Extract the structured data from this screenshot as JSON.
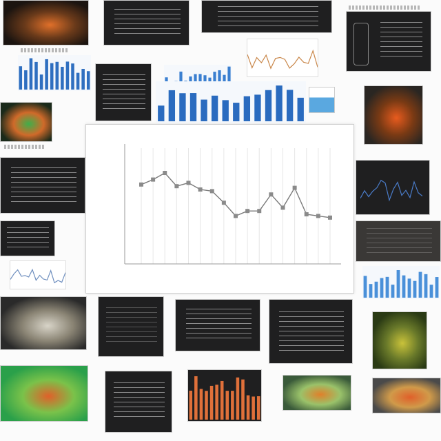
{
  "collage": {
    "tiles": [
      {
        "kind": "photo",
        "name": "photo-tile-orange-specimen",
        "colors": [
          "#1b1410",
          "#e0702a",
          "#6a3a1a"
        ]
      },
      {
        "kind": "dark",
        "name": "dark-text-slide-top"
      },
      {
        "kind": "dark",
        "name": "dark-text-slide-top-wide"
      },
      {
        "kind": "dark",
        "name": "dark-device-slide"
      },
      {
        "kind": "bars",
        "name": "blue-bar-chart-tile-left",
        "color": "#2f6fc0"
      },
      {
        "kind": "dark",
        "name": "dark-text-slide-mid"
      },
      {
        "kind": "bars",
        "name": "blue-bar-chart-tile-center",
        "color": "#3a7fd0"
      },
      {
        "kind": "bars",
        "name": "blue-bar-chart-tile-wide",
        "color": "#2a6bbf"
      },
      {
        "kind": "line",
        "name": "mini-line-chart-tile-top",
        "color": "#c9874a"
      },
      {
        "kind": "photo",
        "name": "photo-tile-orange-sphere",
        "colors": [
          "#2a2622",
          "#e85b1e",
          "#7a3a14"
        ]
      },
      {
        "kind": "photo",
        "name": "photo-tile-green-specimen",
        "colors": [
          "#1a2a1a",
          "#3fae4a",
          "#d06a2a"
        ]
      },
      {
        "kind": "dark",
        "name": "dark-text-slide-left-1"
      },
      {
        "kind": "dark",
        "name": "dark-waveform-slide-right",
        "color": "#4a7cc9"
      },
      {
        "kind": "dark",
        "name": "dark-text-slide-left-2"
      },
      {
        "kind": "line",
        "name": "mini-line-chart-tile-left",
        "color": "#6f8fbf"
      },
      {
        "kind": "dark",
        "name": "dark-texture-slide-right"
      },
      {
        "kind": "bars",
        "name": "blue-bar-chart-tile-right",
        "color": "#4a90d9"
      },
      {
        "kind": "photo",
        "name": "photo-tile-white-specimen",
        "colors": [
          "#2a2a2a",
          "#d8d4c8",
          "#8a8474"
        ]
      },
      {
        "kind": "dark",
        "name": "dark-slide-bottom-1"
      },
      {
        "kind": "dark",
        "name": "dark-text-slide-bottom-2"
      },
      {
        "kind": "dark",
        "name": "dark-text-slide-bottom-3"
      },
      {
        "kind": "photo",
        "name": "photo-tile-green-fibers",
        "colors": [
          "#2a3a14",
          "#c9c23a",
          "#6a7a2a"
        ]
      },
      {
        "kind": "photo",
        "name": "photo-tile-green-orange-map",
        "colors": [
          "#2aa04a",
          "#e0602a",
          "#7ac24a"
        ]
      },
      {
        "kind": "dark",
        "name": "dark-text-slide-bottom-4"
      },
      {
        "kind": "bars",
        "name": "orange-bar-chart-tile",
        "color": "#e0703a"
      },
      {
        "kind": "photo",
        "name": "photo-tile-orange-leaf",
        "colors": [
          "#3a5a3a",
          "#e0802a",
          "#9ac26a"
        ]
      },
      {
        "kind": "photo",
        "name": "photo-tile-orange-strata",
        "colors": [
          "#4a4a4a",
          "#e0602a",
          "#d09a4a"
        ]
      }
    ]
  },
  "main_chart": {
    "chart_data": {
      "type": "line",
      "x": [
        1,
        2,
        3,
        4,
        5,
        6,
        7,
        8,
        9,
        10,
        11,
        12,
        13,
        14,
        15,
        16,
        17
      ],
      "values": [
        48,
        51,
        55,
        47,
        49,
        45,
        44,
        37,
        29,
        32,
        32,
        42,
        34,
        46,
        30,
        29,
        28
      ],
      "ylim": [
        0,
        70
      ],
      "grid": true,
      "color": "#7a7a7a",
      "title": "",
      "xlabel": "",
      "ylabel": ""
    }
  }
}
